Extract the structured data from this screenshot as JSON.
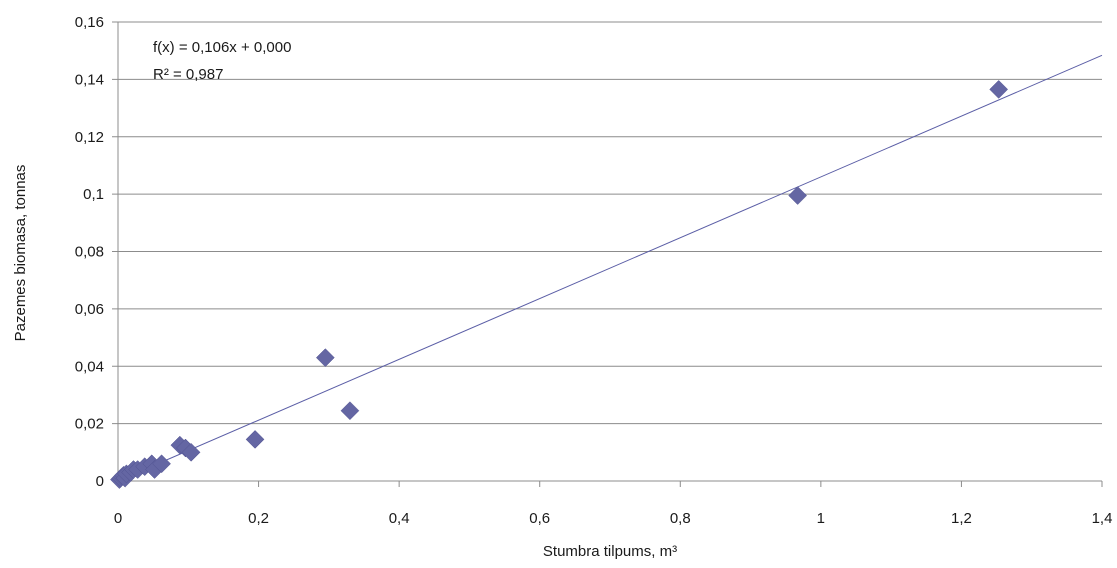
{
  "chart_data": {
    "type": "scatter",
    "xlabel": "Stumbra tilpums, m³",
    "ylabel": "Pazemes biomasa, tonnas",
    "xlim": [
      0,
      1.4
    ],
    "ylim": [
      0,
      0.16
    ],
    "x_ticks": [
      "0",
      "0,2",
      "0,4",
      "0,6",
      "0,8",
      "1",
      "1,2",
      "1,4"
    ],
    "y_ticks": [
      "0",
      "0,02",
      "0,04",
      "0,06",
      "0,08",
      "0,1",
      "0,12",
      "0,14",
      "0,16"
    ],
    "grid": "horizontal",
    "marker_color": "#6466a3",
    "trendline_color": "#5b5ea6",
    "trendline": {
      "equation": "f(x) = 0,106x + 0,000",
      "r_squared": "R² = 0,987",
      "slope": 0.106,
      "intercept": 0.0
    },
    "series": [
      {
        "x": [
          0.002,
          0.004,
          0.006,
          0.008,
          0.01,
          0.012,
          0.018,
          0.022,
          0.028,
          0.038,
          0.048,
          0.052,
          0.062,
          0.088,
          0.096,
          0.104,
          0.195,
          0.295,
          0.33,
          0.967,
          1.253
        ],
        "y": [
          0.0005,
          0.001,
          0.0015,
          0.002,
          0.001,
          0.0025,
          0.003,
          0.004,
          0.004,
          0.005,
          0.006,
          0.004,
          0.006,
          0.0125,
          0.0115,
          0.01,
          0.0145,
          0.043,
          0.0245,
          0.0995,
          0.1365
        ]
      }
    ]
  }
}
